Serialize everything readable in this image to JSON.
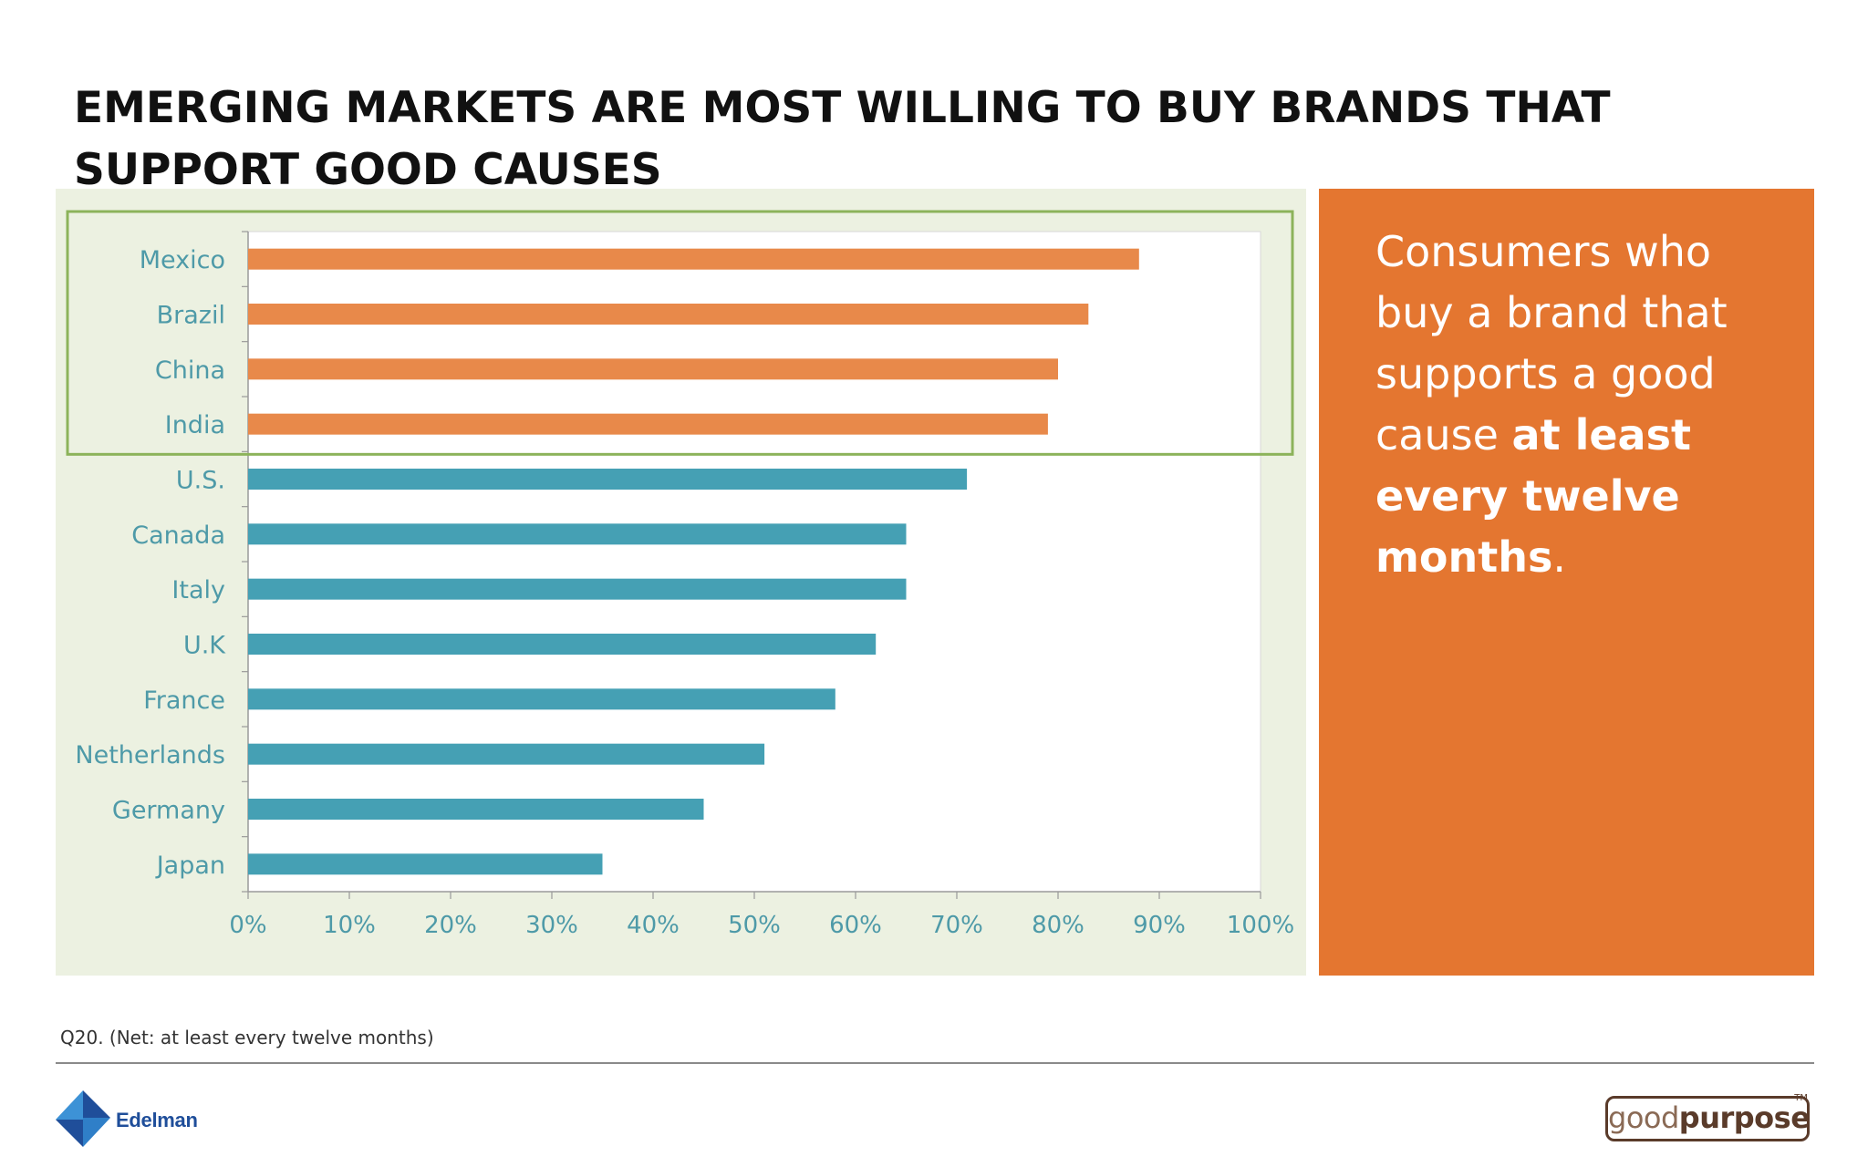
{
  "slide": {
    "title": "EMERGING MARKETS ARE MOST WILLING TO BUY BRANDS THAT SUPPORT GOOD CAUSES",
    "callout": {
      "part1": "Consumers who buy a brand that supports a good cause ",
      "bold": "at least every twelve months",
      "part2": "."
    },
    "footnote": "Q20. (Net: at least every twelve months)",
    "logos": {
      "edelman": "Edelman",
      "goodpurpose_light": "good",
      "goodpurpose_bold": "purpose",
      "goodpurpose_tm": "TM"
    }
  },
  "colors": {
    "emerging": "#e8894a",
    "other": "#45a0b4",
    "highlight_box": "#8cb35a",
    "panel_bg": "#ecf1e1",
    "callout_bg": "#e47630",
    "axis_text": "#4e9aa8"
  },
  "chart_data": {
    "type": "bar",
    "orientation": "horizontal",
    "categories": [
      "Mexico",
      "Brazil",
      "China",
      "India",
      "U.S.",
      "Canada",
      "Italy",
      "U.K",
      "France",
      "Netherlands",
      "Germany",
      "Japan"
    ],
    "values": [
      88,
      83,
      80,
      79,
      71,
      65,
      65,
      62,
      58,
      51,
      45,
      35
    ],
    "highlighted_categories": [
      "Mexico",
      "Brazil",
      "China",
      "India"
    ],
    "x_ticks": [
      "0%",
      "10%",
      "20%",
      "30%",
      "40%",
      "50%",
      "60%",
      "70%",
      "80%",
      "90%",
      "100%"
    ],
    "xlim": [
      0,
      100
    ],
    "grid": false,
    "legend": "none"
  }
}
